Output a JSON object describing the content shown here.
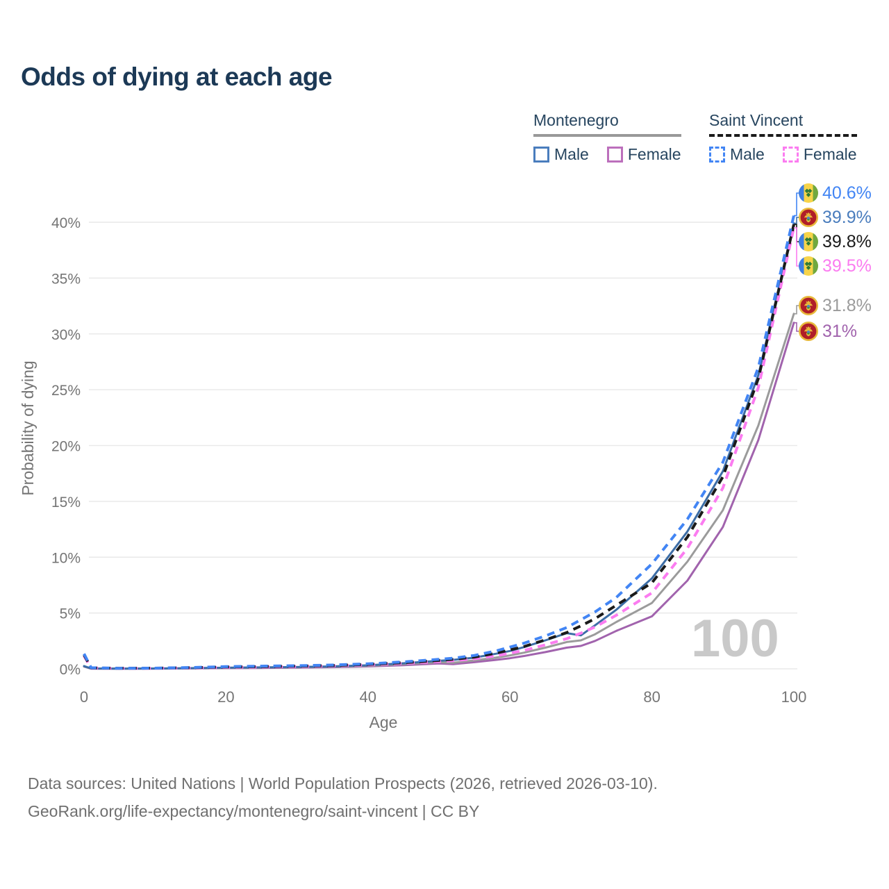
{
  "title": "Odds of dying at each age",
  "legend": {
    "groups": [
      {
        "label": "Montenegro",
        "line_style": "solid",
        "underline_color": "#999999",
        "items": [
          {
            "label": "Male",
            "color": "#4a7dbd"
          },
          {
            "label": "Female",
            "color": "#bc6fbc"
          }
        ]
      },
      {
        "label": "Saint Vincent",
        "line_style": "dashed",
        "underline_color": "#1a1a1a",
        "items": [
          {
            "label": "Male",
            "color": "#4285f4"
          },
          {
            "label": "Female",
            "color": "#fb7cf0"
          }
        ]
      }
    ]
  },
  "watermark": "100",
  "flags": {
    "sv": {
      "blue": "#3f7fe0",
      "yellow": "#f7d44a",
      "green": "#70a83f",
      "diamond": "#2f7a35"
    },
    "me": {
      "red": "#b01e28",
      "gold": "#e8b93b",
      "shield_blue": "#4a86c8",
      "shield_green": "#3f8f3f"
    }
  },
  "footer": {
    "line1": "Data sources: United Nations | World Population Prospects (2026, retrieved 2026-03-10).",
    "line2": "GeoRank.org/life-expectancy/montenegro/saint-vincent | CC BY"
  },
  "chart_data": {
    "type": "line",
    "title": "Odds of dying at each age",
    "xlabel": "Age",
    "ylabel": "Probability of dying",
    "xlim": [
      0,
      100
    ],
    "ylim_pct": [
      0,
      40
    ],
    "x_ticks": [
      0,
      20,
      40,
      60,
      80,
      100
    ],
    "y_ticks": [
      {
        "pct": 0,
        "label": "0%"
      },
      {
        "pct": 5,
        "label": "5%"
      },
      {
        "pct": 10,
        "label": "10%"
      },
      {
        "pct": 15,
        "label": "15%"
      },
      {
        "pct": 20,
        "label": "20%"
      },
      {
        "pct": 25,
        "label": "25%"
      },
      {
        "pct": 30,
        "label": "30%"
      },
      {
        "pct": 35,
        "label": "35%"
      },
      {
        "pct": 40,
        "label": "40%"
      }
    ],
    "grid": "horizontal",
    "legend_position": "top-right",
    "ages": [
      0,
      1,
      5,
      10,
      15,
      20,
      25,
      30,
      35,
      40,
      45,
      50,
      52,
      55,
      58,
      60,
      62,
      65,
      68,
      70,
      72,
      75,
      80,
      85,
      90,
      95,
      100
    ],
    "series": [
      {
        "name": "Saint Vincent Male",
        "country": "Saint Vincent",
        "sex": "Male",
        "color": "#4285f4",
        "dash": true,
        "flag": "sv",
        "end_label": "40.6%",
        "label_color": "#4285f4",
        "values_pct": [
          1.35,
          0.1,
          0.05,
          0.06,
          0.12,
          0.2,
          0.24,
          0.28,
          0.34,
          0.45,
          0.62,
          0.85,
          0.95,
          1.2,
          1.6,
          1.95,
          2.3,
          2.95,
          3.7,
          4.4,
          5.1,
          6.4,
          9.4,
          13.4,
          18.5,
          27.0,
          40.6
        ]
      },
      {
        "name": "Montenegro Male",
        "country": "Montenegro",
        "sex": "Male",
        "color": "#3c6da6",
        "dash": false,
        "flag": "me",
        "end_label": "39.9%",
        "label_color": "#4a7dbd",
        "values_pct": [
          0.25,
          0.03,
          0.02,
          0.03,
          0.06,
          0.1,
          0.13,
          0.16,
          0.22,
          0.32,
          0.5,
          0.72,
          0.8,
          1.0,
          1.35,
          1.6,
          1.95,
          2.55,
          3.2,
          3.0,
          3.9,
          5.3,
          8.1,
          12.3,
          17.7,
          26.3,
          39.9
        ]
      },
      {
        "name": "Saint Vincent Both sexes",
        "country": "Saint Vincent",
        "sex": "Both",
        "color": "#1a1a1a",
        "dash": true,
        "flag": "sv",
        "end_label": "39.8%",
        "label_color": "#1a1a1a",
        "values_pct": [
          1.25,
          0.09,
          0.05,
          0.06,
          0.1,
          0.17,
          0.2,
          0.24,
          0.3,
          0.4,
          0.55,
          0.75,
          0.85,
          1.05,
          1.4,
          1.7,
          2.0,
          2.6,
          3.25,
          3.85,
          4.5,
          5.7,
          7.7,
          11.8,
          17.2,
          26.0,
          39.8
        ]
      },
      {
        "name": "Saint Vincent Female",
        "country": "Saint Vincent",
        "sex": "Female",
        "color": "#fb7cf0",
        "dash": true,
        "flag": "sv",
        "end_label": "39.5%",
        "label_color": "#fb7cf0",
        "values_pct": [
          1.15,
          0.08,
          0.04,
          0.05,
          0.08,
          0.13,
          0.16,
          0.2,
          0.26,
          0.35,
          0.48,
          0.65,
          0.72,
          0.9,
          1.15,
          1.4,
          1.65,
          2.15,
          2.7,
          3.2,
          3.75,
          4.8,
          6.8,
          10.8,
          16.2,
          25.2,
          39.5
        ]
      },
      {
        "name": "Montenegro Both sexes",
        "country": "Montenegro",
        "sex": "Both",
        "color": "#9b9b9b",
        "dash": false,
        "flag": "me",
        "end_label": "31.8%",
        "label_color": "#9b9b9b",
        "values_pct": [
          0.22,
          0.03,
          0.02,
          0.03,
          0.05,
          0.08,
          0.11,
          0.14,
          0.19,
          0.27,
          0.42,
          0.6,
          0.55,
          0.75,
          1.0,
          1.2,
          1.45,
          1.9,
          2.4,
          2.55,
          3.1,
          4.2,
          5.9,
          9.6,
          14.2,
          21.8,
          31.8
        ]
      },
      {
        "name": "Montenegro Female",
        "country": "Montenegro",
        "sex": "Female",
        "color": "#a163ad",
        "dash": false,
        "flag": "me",
        "end_label": "31%",
        "label_color": "#a163ad",
        "values_pct": [
          0.2,
          0.02,
          0.02,
          0.02,
          0.04,
          0.06,
          0.08,
          0.11,
          0.15,
          0.22,
          0.33,
          0.48,
          0.42,
          0.6,
          0.8,
          0.95,
          1.15,
          1.5,
          1.9,
          2.05,
          2.5,
          3.4,
          4.7,
          7.9,
          12.7,
          20.5,
          31.0
        ]
      }
    ],
    "end_label_y_order": [
      "40.6%",
      "39.9%",
      "39.8%",
      "39.5%",
      "31.8%",
      "31%"
    ]
  }
}
